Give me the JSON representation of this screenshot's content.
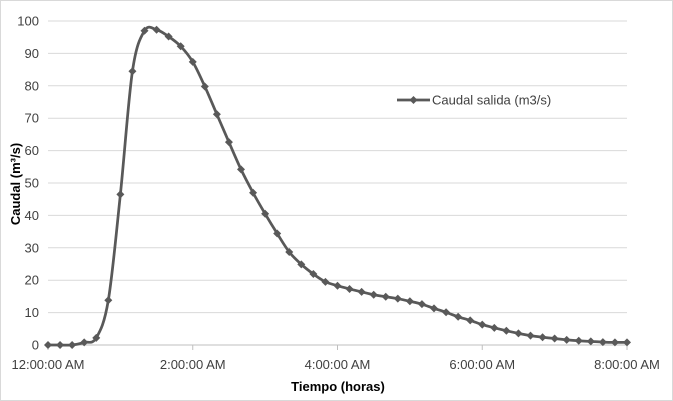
{
  "chart_data": {
    "type": "line",
    "xlabel": "Tiempo (horas)",
    "ylabel": "Caudal (m³/s)",
    "ylim": [
      0,
      100
    ],
    "y_ticks": [
      0,
      10,
      20,
      30,
      40,
      50,
      60,
      70,
      80,
      90,
      100
    ],
    "xlim_hours": [
      0,
      8
    ],
    "x_tick_labels": [
      {
        "hours": 0,
        "label": "12:00:00 AM"
      },
      {
        "hours": 2,
        "label": "2:00:00 AM"
      },
      {
        "hours": 4,
        "label": "4:00:00 AM"
      },
      {
        "hours": 6,
        "label": "6:00:00 AM"
      },
      {
        "hours": 8,
        "label": "8:00:00 AM"
      }
    ],
    "grid": "horizontal",
    "legend_position": "upper-right-inside",
    "series": [
      {
        "name": "Caudal salida (m3/s)",
        "color": "#595959",
        "marker": "diamond",
        "x_hours": [
          0,
          0.1667,
          0.3333,
          0.5,
          0.6667,
          0.8333,
          1.0,
          1.1667,
          1.3333,
          1.5,
          1.6667,
          1.8333,
          2.0,
          2.1667,
          2.3333,
          2.5,
          2.6667,
          2.8333,
          3.0,
          3.1667,
          3.3333,
          3.5,
          3.6667,
          3.8333,
          4.0,
          4.1667,
          4.3333,
          4.5,
          4.6667,
          4.8333,
          5.0,
          5.1667,
          5.3333,
          5.5,
          5.6667,
          5.8333,
          6.0,
          6.1667,
          6.3333,
          6.5,
          6.6667,
          6.8333,
          7.0,
          7.1667,
          7.3333,
          7.5,
          7.6667,
          7.8333,
          8.0
        ],
        "values": [
          0,
          0,
          0,
          0.8,
          2.2,
          13.8,
          46.5,
          84.5,
          97.0,
          97.3,
          95.2,
          92.2,
          87.4,
          79.8,
          71.2,
          62.6,
          54.2,
          47.0,
          40.5,
          34.4,
          28.7,
          24.9,
          21.9,
          19.5,
          18.3,
          17.3,
          16.4,
          15.5,
          14.9,
          14.3,
          13.5,
          12.6,
          11.3,
          10.1,
          8.7,
          7.6,
          6.3,
          5.3,
          4.4,
          3.6,
          2.9,
          2.4,
          2.0,
          1.6,
          1.3,
          1.1,
          0.9,
          0.8,
          0.8
        ]
      }
    ]
  }
}
